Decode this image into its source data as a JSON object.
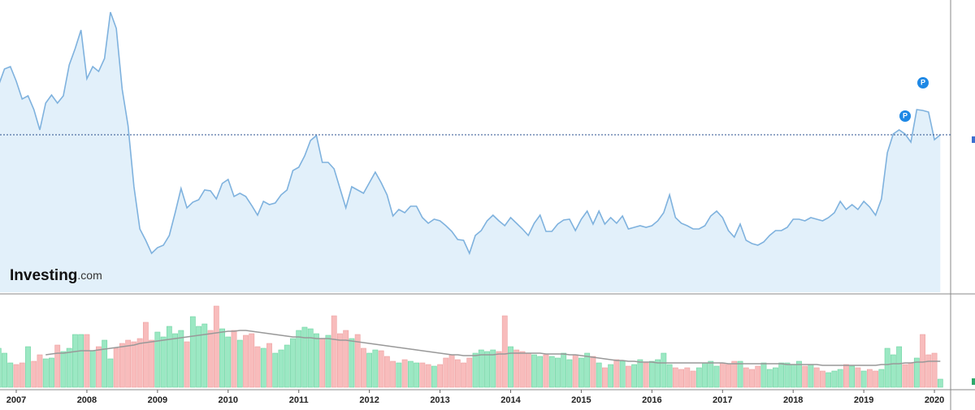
{
  "chart_data": [
    {
      "type": "area",
      "categories": [
        null,
        null,
        null,
        "2007",
        null,
        null,
        null,
        null,
        null,
        null,
        null,
        null,
        null,
        null,
        null,
        "2008",
        null,
        null,
        null,
        null,
        null,
        null,
        null,
        null,
        null,
        null,
        null,
        "2009",
        null,
        null,
        null,
        null,
        null,
        null,
        null,
        null,
        null,
        null,
        null,
        "2010",
        null,
        null,
        null,
        null,
        null,
        null,
        null,
        null,
        null,
        null,
        null,
        "2011",
        null,
        null,
        null,
        null,
        null,
        null,
        null,
        null,
        null,
        null,
        null,
        "2012",
        null,
        null,
        null,
        null,
        null,
        null,
        null,
        null,
        null,
        null,
        null,
        "2013",
        null,
        null,
        null,
        null,
        null,
        null,
        null,
        null,
        null,
        null,
        null,
        "2014",
        null,
        null,
        null,
        null,
        null,
        null,
        null,
        null,
        null,
        null,
        null,
        "2015",
        null,
        null,
        null,
        null,
        null,
        null,
        null,
        null,
        null,
        null,
        null,
        "2016",
        null,
        null,
        null,
        null,
        null,
        null,
        null,
        null,
        null,
        null,
        null,
        "2017",
        null,
        null,
        null,
        null,
        null,
        null,
        null,
        null,
        null,
        null,
        null,
        "2018",
        null,
        null,
        null,
        null,
        null,
        null,
        null,
        null,
        null,
        null,
        null,
        "2019",
        null,
        null,
        null,
        null,
        null,
        null,
        null,
        null,
        null,
        null,
        null,
        "2020",
        null
      ],
      "series": [
        {
          "color": "#7fb2de",
          "fill": "#e2f0fa",
          "values": [
            255,
            275,
            278,
            260,
            238,
            242,
            225,
            200,
            233,
            243,
            233,
            242,
            280,
            300,
            323,
            263,
            278,
            272,
            288,
            345,
            325,
            250,
            205,
            130,
            78,
            64,
            48,
            55,
            58,
            70,
            98,
            128,
            104,
            111,
            114,
            126,
            125,
            115,
            134,
            139,
            118,
            122,
            118,
            107,
            95,
            112,
            108,
            110,
            120,
            126,
            150,
            154,
            168,
            187,
            193,
            160,
            160,
            152,
            128,
            104,
            130,
            126,
            122,
            135,
            148,
            135,
            120,
            94,
            102,
            98,
            106,
            106,
            92,
            85,
            90,
            88,
            82,
            75,
            65,
            64,
            48,
            70,
            76,
            88,
            95,
            88,
            82,
            92,
            85,
            78,
            70,
            85,
            95,
            75,
            75,
            84,
            89,
            90,
            76,
            90,
            100,
            84,
            100,
            84,
            92,
            85,
            94,
            78,
            80,
            82,
            80,
            82,
            88,
            98,
            120,
            92,
            85,
            82,
            78,
            78,
            82,
            94,
            100,
            92,
            76,
            68,
            84,
            64,
            60,
            58,
            62,
            70,
            76,
            76,
            80,
            90,
            90,
            88,
            92,
            90,
            88,
            92,
            98,
            112,
            102,
            108,
            102,
            112,
            105,
            95,
            115,
            172,
            195,
            200,
            195,
            185,
            225,
            224,
            222,
            188,
            194
          ]
        }
      ],
      "ylim": [
        0,
        360
      ]
    },
    {
      "type": "bar",
      "series": [
        {
          "up_color": "#9be8c3",
          "down_color": "#f8bcbc",
          "edge_up": "#6fd3a2",
          "edge_down": "#eda0a0",
          "values": [
            48,
            42,
            30,
            28,
            30,
            50,
            32,
            40,
            35,
            36,
            52,
            44,
            48,
            65,
            65,
            65,
            45,
            50,
            58,
            35,
            48,
            54,
            58,
            56,
            60,
            80,
            58,
            68,
            62,
            75,
            66,
            70,
            56,
            87,
            75,
            78,
            70,
            100,
            72,
            62,
            70,
            58,
            64,
            66,
            50,
            48,
            54,
            42,
            46,
            52,
            60,
            70,
            74,
            72,
            66,
            60,
            64,
            88,
            66,
            70,
            60,
            65,
            48,
            42,
            46,
            45,
            38,
            32,
            30,
            34,
            32,
            30,
            30,
            28,
            26,
            28,
            36,
            40,
            34,
            30,
            36,
            42,
            46,
            44,
            46,
            44,
            88,
            50,
            46,
            44,
            42,
            40,
            38,
            40,
            38,
            36,
            42,
            34,
            40,
            36,
            42,
            38,
            30,
            24,
            28,
            34,
            32,
            26,
            28,
            34,
            30,
            32,
            34,
            42,
            28,
            24,
            22,
            24,
            20,
            24,
            30,
            32,
            26,
            30,
            28,
            32,
            32,
            24,
            22,
            26,
            30,
            22,
            24,
            30,
            30,
            28,
            32,
            26,
            28,
            24,
            20,
            18,
            20,
            22,
            28,
            26,
            24,
            20,
            22,
            20,
            22,
            48,
            40,
            50,
            28,
            30,
            36,
            65,
            40,
            42,
            10
          ]
        },
        {
          "type": "line",
          "color": "#999999",
          "values": [
            null,
            null,
            null,
            null,
            null,
            null,
            null,
            null,
            40,
            41,
            42,
            42,
            43,
            44,
            45,
            45,
            45,
            46,
            47,
            48,
            49,
            50,
            51,
            52,
            54,
            55,
            56,
            57,
            58,
            59,
            60,
            61,
            62,
            63,
            64,
            65,
            66,
            67,
            68,
            69,
            69,
            70,
            70,
            69,
            68,
            67,
            66,
            65,
            64,
            63,
            62,
            62,
            61,
            61,
            60,
            60,
            60,
            59,
            58,
            58,
            57,
            56,
            55,
            54,
            53,
            52,
            51,
            50,
            49,
            48,
            47,
            46,
            45,
            44,
            43,
            42,
            41,
            40,
            40,
            39,
            39,
            39,
            40,
            40,
            40,
            41,
            41,
            42,
            42,
            42,
            42,
            42,
            42,
            41,
            41,
            41,
            41,
            40,
            40,
            39,
            38,
            37,
            36,
            35,
            34,
            33,
            33,
            32,
            32,
            31,
            31,
            31,
            30,
            30,
            30,
            30,
            30,
            30,
            30,
            30,
            30,
            30,
            30,
            30,
            29,
            29,
            29,
            29,
            29,
            29,
            29,
            29,
            29,
            29,
            28,
            28,
            28,
            28,
            28,
            28,
            27,
            27,
            27,
            27,
            27,
            27,
            27,
            27,
            27,
            27,
            28,
            28,
            29,
            29,
            30,
            30,
            31,
            31,
            32,
            32,
            32
          ]
        }
      ],
      "ylim": [
        0,
        112
      ]
    }
  ],
  "logo": {
    "name": "Investing",
    "suffix": ".com"
  },
  "markers": [
    {
      "label": "P"
    },
    {
      "label": "P"
    }
  ]
}
